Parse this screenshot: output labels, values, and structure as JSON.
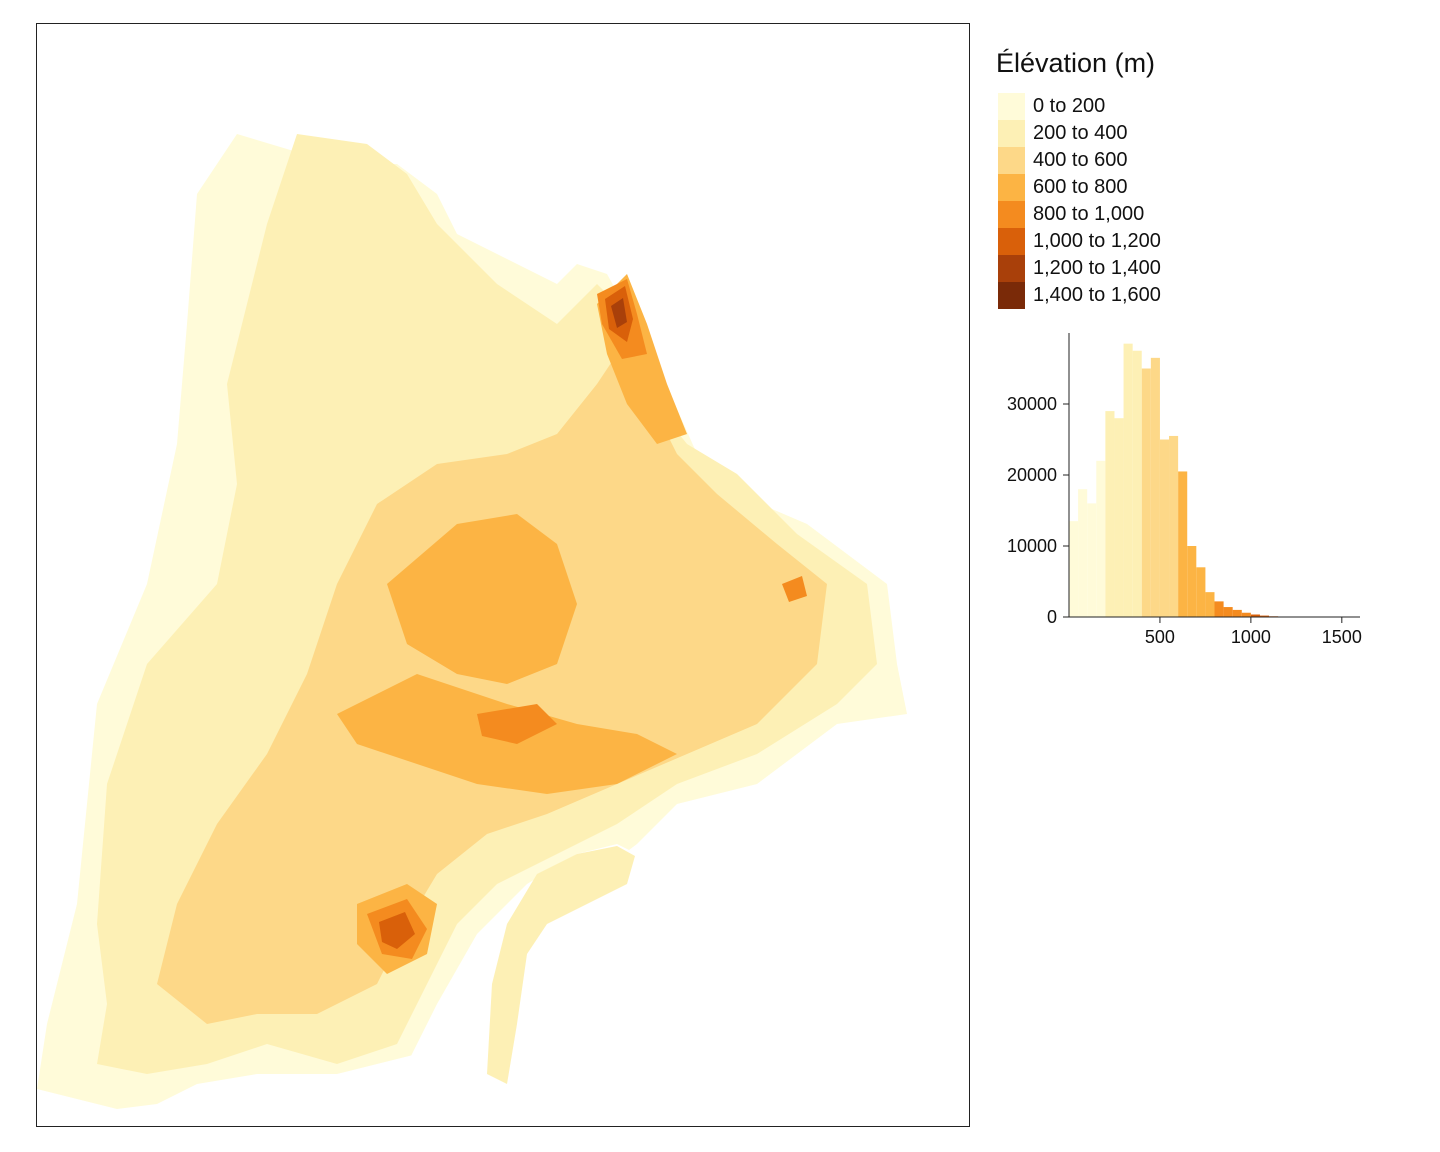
{
  "legend": {
    "title": "Élévation (m)",
    "items": [
      {
        "label": "0 to 200",
        "color": "#fffbd9"
      },
      {
        "label": "200 to 400",
        "color": "#fdf0b5"
      },
      {
        "label": "400 to 600",
        "color": "#fdd888"
      },
      {
        "label": "600 to 800",
        "color": "#fcb444"
      },
      {
        "label": "800 to 1,000",
        "color": "#f48b1f"
      },
      {
        "label": "1,000 to 1,200",
        "color": "#d9600a"
      },
      {
        "label": "1,200 to 1,400",
        "color": "#a9400a"
      },
      {
        "label": "1,400 to 1,600",
        "color": "#7a2a08"
      }
    ]
  },
  "chart_data": {
    "type": "bar",
    "title": "",
    "xlabel": "",
    "ylabel": "",
    "xlim": [
      0,
      1600
    ],
    "ylim": [
      0,
      40000
    ],
    "x_ticks": [
      500,
      1000,
      1500
    ],
    "y_ticks": [
      0,
      10000,
      20000,
      30000
    ],
    "bin_width": 50,
    "bins": [
      {
        "x": 0,
        "count": 13500
      },
      {
        "x": 50,
        "count": 18000
      },
      {
        "x": 100,
        "count": 16000
      },
      {
        "x": 150,
        "count": 22000
      },
      {
        "x": 200,
        "count": 29000
      },
      {
        "x": 250,
        "count": 28000
      },
      {
        "x": 300,
        "count": 38500
      },
      {
        "x": 350,
        "count": 37500
      },
      {
        "x": 400,
        "count": 35000
      },
      {
        "x": 450,
        "count": 36500
      },
      {
        "x": 500,
        "count": 25000
      },
      {
        "x": 550,
        "count": 25500
      },
      {
        "x": 600,
        "count": 20500
      },
      {
        "x": 650,
        "count": 10000
      },
      {
        "x": 700,
        "count": 7000
      },
      {
        "x": 750,
        "count": 3500
      },
      {
        "x": 800,
        "count": 2200
      },
      {
        "x": 850,
        "count": 1400
      },
      {
        "x": 900,
        "count": 1000
      },
      {
        "x": 950,
        "count": 600
      },
      {
        "x": 1000,
        "count": 350
      },
      {
        "x": 1050,
        "count": 200
      },
      {
        "x": 1100,
        "count": 100
      },
      {
        "x": 1150,
        "count": 50
      },
      {
        "x": 1200,
        "count": 30
      },
      {
        "x": 1250,
        "count": 20
      },
      {
        "x": 1300,
        "count": 10
      },
      {
        "x": 1350,
        "count": 5
      }
    ]
  }
}
